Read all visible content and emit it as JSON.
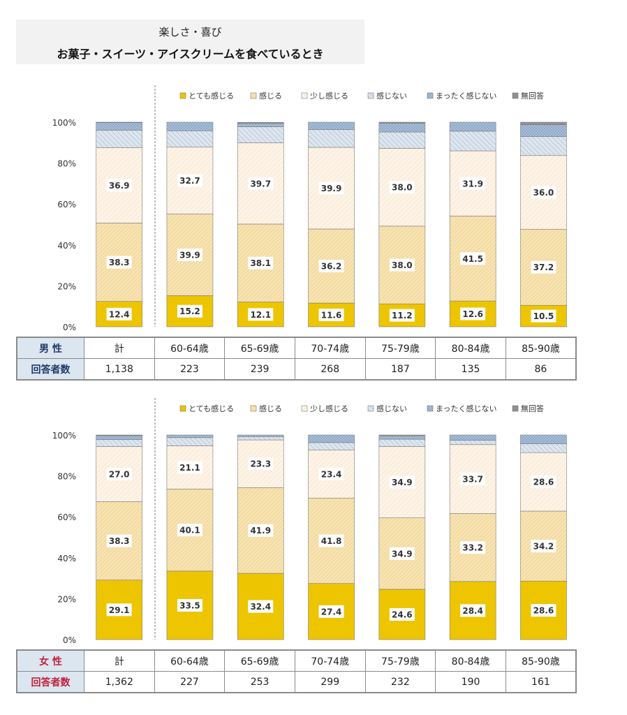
{
  "title": {
    "line1": "楽しさ・喜び",
    "line2": "お菓子・スイーツ・アイスクリームを食べているとき"
  },
  "legend": [
    "とても感じる",
    "感じる",
    "少し感じる",
    "感じない",
    "まったく感じない",
    "無回答"
  ],
  "colors": {
    "very": "#f0c800",
    "feel": "#f7e3b2",
    "little": "#fdf3e6",
    "not": "#dde5ee",
    "never": "#aec4dd",
    "na": "#909090"
  },
  "chart_data": [
    {
      "type": "bar",
      "stacked": true,
      "title": "男性",
      "categories": [
        "計",
        "60-64歳",
        "65-69歳",
        "70-74歳",
        "75-79歳",
        "80-84歳",
        "85-90歳"
      ],
      "y_ticks": [
        "0%",
        "20%",
        "40%",
        "60%",
        "80%",
        "100%"
      ],
      "ylim": [
        0,
        100
      ],
      "series": [
        {
          "name": "とても感じる",
          "values": [
            12.4,
            15.2,
            12.1,
            11.6,
            11.2,
            12.6,
            10.5
          ]
        },
        {
          "name": "感じる",
          "values": [
            38.3,
            39.9,
            38.1,
            36.2,
            38.0,
            41.5,
            37.2
          ]
        },
        {
          "name": "少し感じる",
          "values": [
            36.9,
            32.7,
            39.7,
            39.9,
            38.0,
            31.9,
            36.0
          ]
        },
        {
          "name": "感じない",
          "values": [
            8.4,
            8.0,
            7.9,
            8.7,
            8.0,
            9.6,
            9.3
          ]
        },
        {
          "name": "まったく感じない",
          "values": [
            3.8,
            4.2,
            1.7,
            3.6,
            4.3,
            4.4,
            5.8
          ]
        },
        {
          "name": "無回答",
          "values": [
            0.2,
            0.0,
            0.4,
            0.0,
            0.5,
            0.0,
            1.2
          ]
        }
      ]
    },
    {
      "type": "bar",
      "stacked": true,
      "title": "女性",
      "categories": [
        "計",
        "60-64歳",
        "65-69歳",
        "70-74歳",
        "75-79歳",
        "80-84歳",
        "85-90歳"
      ],
      "y_ticks": [
        "0%",
        "20%",
        "40%",
        "60%",
        "80%",
        "100%"
      ],
      "ylim": [
        0,
        100
      ],
      "series": [
        {
          "name": "とても感じる",
          "values": [
            29.1,
            33.5,
            32.4,
            27.4,
            24.6,
            28.4,
            28.6
          ]
        },
        {
          "name": "感じる",
          "values": [
            38.3,
            40.1,
            41.9,
            41.8,
            34.9,
            33.2,
            34.2
          ]
        },
        {
          "name": "少し感じる",
          "values": [
            27.0,
            21.1,
            23.3,
            23.4,
            34.9,
            33.7,
            28.6
          ]
        },
        {
          "name": "感じない",
          "values": [
            3.4,
            4.0,
            1.6,
            3.7,
            3.5,
            2.1,
            4.3
          ]
        },
        {
          "name": "まったく感じない",
          "values": [
            1.9,
            1.3,
            0.8,
            3.7,
            1.7,
            2.6,
            4.3
          ]
        },
        {
          "name": "無回答",
          "values": [
            0.3,
            0.0,
            0.0,
            0.0,
            0.4,
            0.0,
            0.0
          ]
        }
      ]
    }
  ],
  "male_table": {
    "header": "男 性",
    "total_label": "計",
    "groups": [
      "60-64歳",
      "65-69歳",
      "70-74歳",
      "75-79歳",
      "80-84歳",
      "85-90歳"
    ],
    "respondents_label": "回答者数",
    "total_count": "1,138",
    "counts": [
      "223",
      "239",
      "268",
      "187",
      "135",
      "86"
    ]
  },
  "female_table": {
    "header": "女 性",
    "total_label": "計",
    "groups": [
      "60-64歳",
      "65-69歳",
      "70-74歳",
      "75-79歳",
      "80-84歳",
      "85-90歳"
    ],
    "respondents_label": "回答者数",
    "total_count": "1,362",
    "counts": [
      "227",
      "253",
      "299",
      "232",
      "190",
      "161"
    ]
  }
}
